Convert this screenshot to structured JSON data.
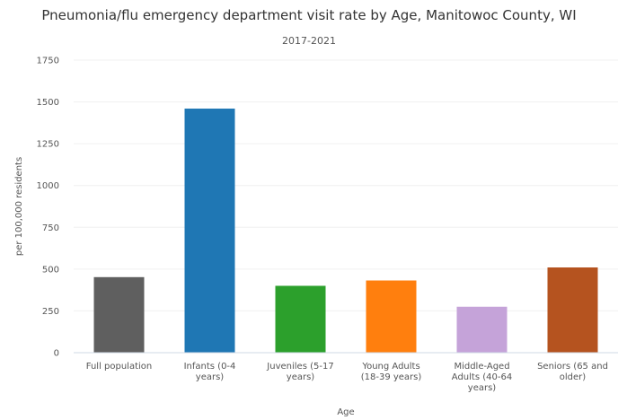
{
  "chart_data": {
    "type": "bar",
    "title": "Pneumonia/flu emergency department visit rate by Age, Manitowoc County, WI",
    "subtitle": "2017-2021",
    "xlabel": "Age",
    "ylabel": "per 100,000 residents",
    "ylim": [
      0,
      1750
    ],
    "yticks": [
      0,
      250,
      500,
      750,
      1000,
      1250,
      1500,
      1750
    ],
    "grid": true,
    "legend": "none",
    "categories": [
      [
        "Full population"
      ],
      [
        "Infants (0-4",
        "years)"
      ],
      [
        "Juveniles (5-17",
        "years)"
      ],
      [
        "Young Adults",
        "(18-39 years)"
      ],
      [
        "Middle-Aged",
        "Adults (40-64",
        "years)"
      ],
      [
        "Seniors (65 and",
        "older)"
      ]
    ],
    "values": [
      452,
      1460,
      400,
      432,
      275,
      510
    ],
    "colors": [
      "#5f5f5f",
      "#1f77b4",
      "#2ca02c",
      "#ff7f0e",
      "#c5a3d9",
      "#b5531f"
    ]
  }
}
